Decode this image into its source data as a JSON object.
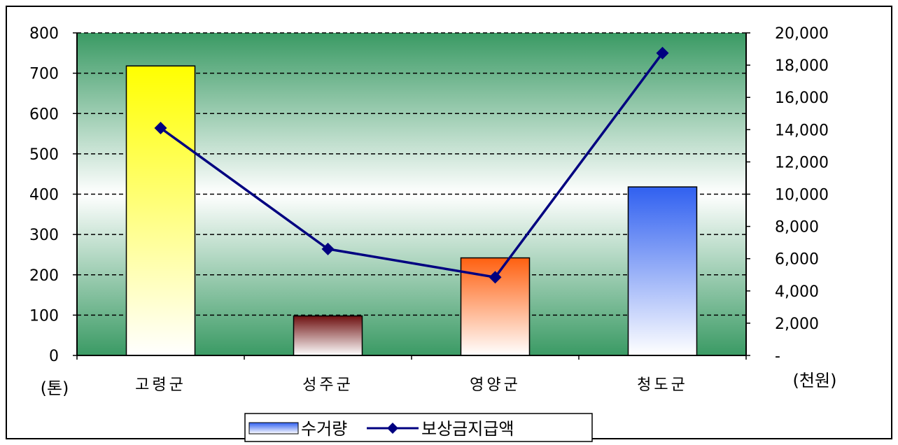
{
  "chart_data": {
    "type": "bar",
    "categories": [
      "고령군",
      "성주군",
      "영양군",
      "청도군"
    ],
    "left_axis": {
      "unit_label": "(톤)",
      "ylim": [
        0,
        800
      ],
      "ticks": [
        "0",
        "100",
        "200",
        "300",
        "400",
        "500",
        "600",
        "700",
        "800"
      ]
    },
    "right_axis": {
      "unit_label": "(천원)",
      "ylim": [
        0,
        20000
      ],
      "ticks": [
        "-",
        "2,000",
        "4,000",
        "6,000",
        "8,000",
        "10,000",
        "12,000",
        "14,000",
        "16,000",
        "18,000",
        "20,000"
      ]
    },
    "series": [
      {
        "name": "수거량",
        "type": "bar",
        "axis": "left",
        "values": [
          718,
          98,
          242,
          418
        ],
        "colors": [
          "#ffff00",
          "#6e1010",
          "#ff6010",
          "#3060f0"
        ]
      },
      {
        "name": "보상금지급액",
        "type": "line",
        "axis": "right",
        "values": [
          14100,
          6600,
          4850,
          18750
        ],
        "color": "#000080"
      }
    ],
    "grid": true,
    "legend": "bottom",
    "background": {
      "edge": "#3a9a64",
      "center": "#ffffff"
    }
  }
}
